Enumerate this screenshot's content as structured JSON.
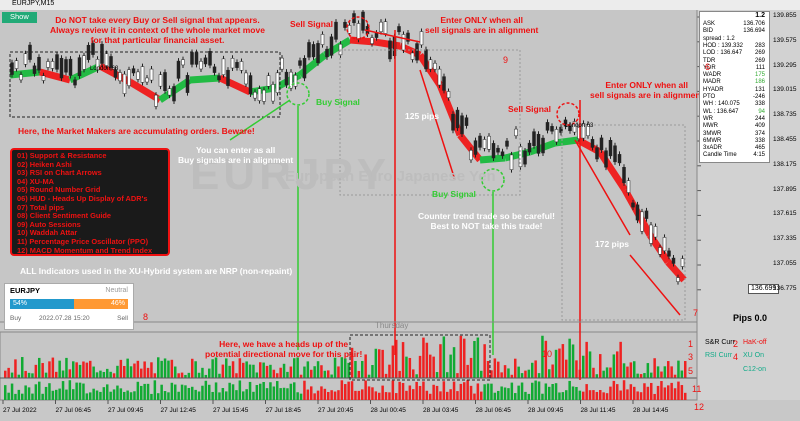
{
  "window": {
    "title": "EURJPY,M15",
    "show_button": "Show"
  },
  "watermark": {
    "symbol": "EURJPY",
    "name": "European Euro Japanese Yen"
  },
  "annotations": {
    "warning": [
      "Do NOT take every Buy or Sell signal that appears.",
      "Always review it in context of the whole market move",
      "for that particular financial asset."
    ],
    "sell_signal_1": "Sell Signal",
    "enter_sell_1": [
      "Enter ONLY when all",
      "sell signals are in alignment"
    ],
    "buy_signal_1": "Buy Signal",
    "market_makers": "Here, the Market Makers are accumulating orders. Beware!",
    "enter_buy": [
      "You can enter as all",
      "Buy signals are in alignment"
    ],
    "pips_125": "125 pips",
    "sell_signal_2": "Sell Signal",
    "enter_sell_2": [
      "Enter ONLY when all",
      "sell signals are in alignment"
    ],
    "buy_signal_2": "Buy Signal",
    "counter_trend": [
      "Counter trend trade so be careful!",
      "Best to NOT take this trade!"
    ],
    "pips_172": "172 pips",
    "nrp": "ALL Indicators used in the XU-Hybrid system are NRP (non-repaint)",
    "heads_up": [
      "Here, we have a heads up of the",
      "potential directional move for this pair!"
    ]
  },
  "indicator_list": [
    "01) Support & Resistance",
    "02) Heiken Ashi",
    "03) RSI on Chart Arrows",
    "04) XU-MA",
    "05) Round Number Grid",
    "06) HUD - Heads Up Display of ADR's",
    "07) Total pips",
    "08) Client Sentiment Guide",
    "09) Auto Sessions",
    "10) Waddah Attar",
    "11) Percentage Price Oscillator (PPO)",
    "12) MACD Momentum and Trend Index"
  ],
  "sentiment": {
    "symbol": "EURJPY",
    "status": "Neutral",
    "buy_pct": "54%",
    "sell_pct": "46%",
    "buy": "Buy",
    "time": "2022.07.28 15:20",
    "sell": "Sell"
  },
  "hud": {
    "version": "1.2",
    "rows": [
      [
        "ASK",
        "136.706"
      ],
      [
        "BID",
        "136.694"
      ],
      [
        "spread : 1.2",
        ""
      ],
      [
        "HOD : 139.332",
        "283"
      ],
      [
        "LOD : 136.647",
        "269"
      ],
      [
        "TDR",
        "269"
      ],
      [
        "YDR",
        "111"
      ],
      [
        "WADR",
        "175"
      ],
      [
        "MADR",
        "186"
      ],
      [
        "HYADR",
        "131"
      ],
      [
        "PTO",
        "-246"
      ],
      [
        "WH : 140.075",
        "338"
      ],
      [
        "WL : 136.647",
        "94"
      ],
      [
        "WR",
        "244"
      ],
      [
        "MWR",
        "409"
      ],
      [
        "3MWR",
        "374"
      ],
      [
        "6MWR",
        "338"
      ],
      [
        "3xADR",
        "465"
      ],
      [
        "Candle Time",
        "4:15"
      ]
    ]
  },
  "price_axis": [
    "139.855",
    "139.575",
    "139.295",
    "139.015",
    "138.735",
    "138.455",
    "138.175",
    "137.895",
    "137.615",
    "137.335",
    "137.055",
    "136.775"
  ],
  "current_price": "136.699",
  "session_label": "London 63",
  "day_label": "Thursday",
  "pips_counter": "Pips 0.0",
  "markers": [
    "1",
    "2",
    "3",
    "4",
    "5",
    "6",
    "7",
    "8",
    "9",
    "10",
    "11",
    "12"
  ],
  "panel_labels": {
    "sr": "S&R Curr",
    "hak": "HaK-off",
    "rsi": "RSI Curr",
    "xu": "XU On",
    "c12": "C12-on"
  },
  "time_axis": [
    "27 Jul 2022",
    "27 Jul 06:45",
    "27 Jul 09:45",
    "27 Jul 12:45",
    "27 Jul 15:45",
    "27 Jul 18:45",
    "27 Jul 20:45",
    "28 Jul 00:45",
    "28 Jul 03:45",
    "28 Jul 06:45",
    "28 Jul 09:45",
    "28 Jul 11:45",
    "28 Jul 14:45"
  ]
}
